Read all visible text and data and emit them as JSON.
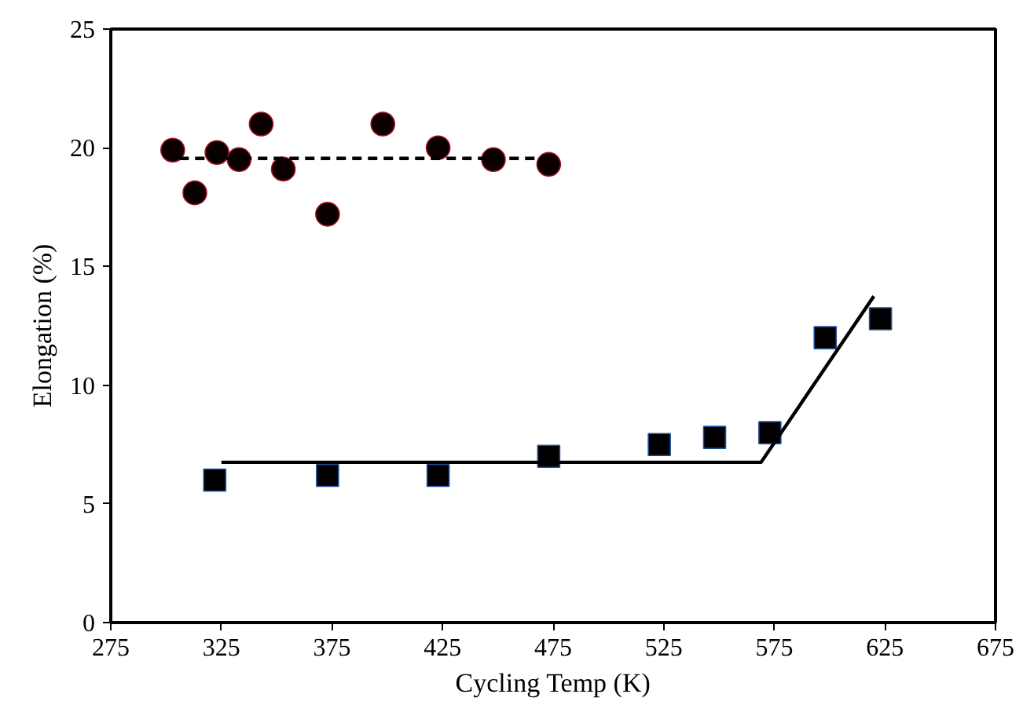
{
  "chart_data": {
    "type": "scatter",
    "xlabel": "Cycling Temp (K)",
    "ylabel": "Elongation (%)",
    "xlim": [
      275,
      675
    ],
    "xticks": [
      275,
      325,
      375,
      425,
      475,
      525,
      575,
      625,
      675
    ],
    "ylim": [
      0,
      25
    ],
    "yticks": [
      0,
      5,
      10,
      15,
      20,
      25
    ],
    "grid": false,
    "series": [
      {
        "marker": "circle",
        "color": "#0a0000",
        "x": [
          303,
          313,
          323,
          333,
          343,
          353,
          373,
          398,
          423,
          448,
          473
        ],
        "values": [
          19.9,
          18.1,
          19.8,
          19.5,
          21.0,
          19.1,
          17.2,
          21.0,
          20.0,
          19.5,
          19.3
        ]
      },
      {
        "type": "line",
        "line_style": "dashed",
        "color": "#000000",
        "x": [
          306,
          470
        ],
        "values": [
          19.55,
          19.55
        ]
      },
      {
        "marker": "square",
        "color": "#000000",
        "x": [
          322,
          373,
          423,
          473,
          523,
          548,
          573,
          598,
          623
        ],
        "values": [
          6.0,
          6.2,
          6.2,
          7.0,
          7.5,
          7.8,
          8.0,
          12.0,
          12.8
        ]
      },
      {
        "type": "line",
        "line_style": "solid",
        "color": "#000000",
        "x": [
          325,
          569,
          620
        ],
        "values": [
          6.75,
          6.75,
          13.75
        ]
      }
    ]
  }
}
